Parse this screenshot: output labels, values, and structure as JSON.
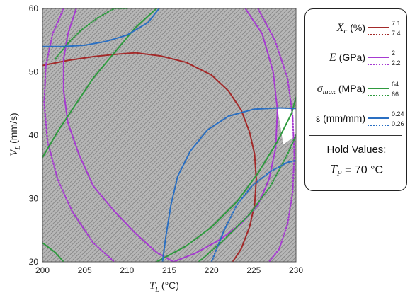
{
  "chart_data": {
    "type": "line",
    "xlabel_symbol": "T",
    "xlabel_sub": "L",
    "xlabel_unit": "(°C)",
    "ylabel_symbol": "V",
    "ylabel_sub": "L",
    "ylabel_unit": "(mm/s)",
    "xlim": [
      200,
      230
    ],
    "ylim": [
      20,
      60
    ],
    "xticks": [
      "200",
      "205",
      "210",
      "215",
      "220",
      "225",
      "230"
    ],
    "yticks": [
      "20",
      "30",
      "40",
      "50",
      "60"
    ],
    "grid": false,
    "background": "hatched gray feasible-region overlay with a small white unhatched pocket near x=228-230, y=40-44",
    "colors": {
      "crystallinity": "#a32a2a",
      "modulus": "#a63ad1",
      "strength": "#2e9a3e",
      "strain": "#2a6fc2",
      "hatch": "#8a8a8a"
    },
    "series": [
      {
        "name": "X_c (%) 7.1",
        "color": "#a32a2a",
        "style": "solid",
        "x": [
          200,
          203,
          206,
          209,
          211,
          214,
          217,
          220,
          222,
          223.5,
          224.5,
          225.1,
          225.3,
          225.1,
          224.5,
          223.5,
          222.5
        ],
        "y": [
          51,
          51.8,
          52.4,
          52.8,
          53,
          52.5,
          51.5,
          49.5,
          47,
          44,
          40.5,
          37,
          33,
          29,
          25.5,
          22,
          20
        ]
      },
      {
        "name": "E (GPa) 2",
        "color": "#a63ad1",
        "style": "solid",
        "x": [
          204,
          203,
          202.5,
          202.5,
          203,
          204.3,
          206,
          208.5,
          211,
          213.5,
          215.5
        ],
        "y": [
          60,
          56,
          52,
          47,
          42,
          37,
          32,
          28,
          24.5,
          21.5,
          20
        ]
      },
      {
        "name": "E (GPa) 2",
        "color": "#a63ad1",
        "style": "solid",
        "x": [
          224,
          226,
          227.3,
          227.8,
          227.6,
          226.8,
          225.5,
          223.5,
          221,
          218,
          215.5
        ],
        "y": [
          60,
          56,
          50,
          44,
          38,
          33,
          29,
          26,
          23.5,
          21.3,
          20
        ]
      },
      {
        "name": "E (GPa) 2.2",
        "color": "#a63ad1",
        "style": "dotted",
        "x": [
          202.5,
          201.2,
          200.4,
          200.2,
          200.6,
          201.8,
          203.5,
          206,
          208.5
        ],
        "y": [
          60,
          56,
          51,
          45,
          39,
          33,
          28,
          23,
          20
        ]
      },
      {
        "name": "E (GPa) 2.2",
        "color": "#a63ad1",
        "style": "dotted",
        "x": [
          225.5,
          227.5,
          229,
          229.6,
          229.8,
          229.6,
          229,
          228,
          226.8
        ],
        "y": [
          60,
          55,
          49,
          43,
          37,
          31,
          26,
          22,
          20
        ]
      },
      {
        "name": "σmax (MPa) 64",
        "color": "#2e9a3e",
        "style": "solid",
        "x": [
          200,
          202,
          204,
          206,
          208.5,
          211,
          213.5
        ],
        "y": [
          36.5,
          41,
          45,
          49,
          53,
          57,
          60
        ]
      },
      {
        "name": "σmax (MPa) 64",
        "color": "#2e9a3e",
        "style": "solid",
        "x": [
          200,
          201.5,
          202.5
        ],
        "y": [
          23,
          21.5,
          20
        ]
      },
      {
        "name": "σmax (MPa) 64",
        "color": "#2e9a3e",
        "style": "solid",
        "x": [
          213.5,
          217,
          220,
          223,
          225.5,
          227.8,
          229.5,
          230
        ],
        "y": [
          20,
          22.5,
          25.5,
          29.5,
          34,
          39,
          43.5,
          46
        ]
      },
      {
        "name": "σmax (MPa) 66",
        "color": "#2e9a3e",
        "style": "dotted",
        "x": [
          201.5,
          203,
          204.5,
          206.5,
          208.5,
          210
        ],
        "y": [
          52,
          54.5,
          56.5,
          58.5,
          60,
          60
        ]
      },
      {
        "name": "σmax (MPa) 66",
        "color": "#2e9a3e",
        "style": "dotted",
        "x": [
          218.5,
          221.5,
          224.5,
          227,
          229,
          230
        ],
        "y": [
          20,
          23.5,
          27.5,
          32,
          37,
          40
        ]
      },
      {
        "name": "ε (mm/mm) 0.24",
        "color": "#2a6fc2",
        "style": "solid",
        "x": [
          200,
          202.5,
          205,
          207.5,
          210,
          212.5,
          213.8
        ],
        "y": [
          54,
          54,
          54.2,
          54.8,
          55.8,
          57.8,
          60
        ]
      },
      {
        "name": "ε (mm/mm) 0.24",
        "color": "#2a6fc2",
        "style": "solid",
        "x": [
          214.2,
          214.6,
          215.2,
          216,
          217.5,
          219.5,
          222,
          225,
          228,
          230
        ],
        "y": [
          20,
          24,
          29,
          33.5,
          37.5,
          40.8,
          43,
          44.1,
          44.3,
          44.2
        ]
      },
      {
        "name": "ε (mm/mm) 0.26",
        "color": "#2a6fc2",
        "style": "dotted",
        "x": [
          220,
          221.5,
          223,
          224.8,
          227,
          229,
          230
        ],
        "y": [
          20,
          25,
          29,
          32,
          34.3,
          35.7,
          36
        ]
      }
    ]
  },
  "legend": {
    "items": [
      {
        "label_symbol": "X",
        "label_sub": "c",
        "label_unit": " (%)",
        "solid_value": "7.1",
        "dotted_value": "7.4",
        "color": "#a32a2a"
      },
      {
        "label_symbol": "E",
        "label_sub": "",
        "label_unit": " (GPa)",
        "solid_value": "2",
        "dotted_value": "2.2",
        "color": "#a63ad1"
      },
      {
        "label_symbol": "σ",
        "label_sub": "max",
        "label_unit": " (MPa)",
        "solid_value": "64",
        "dotted_value": "66",
        "color": "#2e9a3e"
      },
      {
        "label_symbol": "",
        "label_sub": "",
        "label_unit": "ε (mm/mm)",
        "solid_value": "0.24",
        "dotted_value": "0.26",
        "color": "#2a6fc2"
      }
    ],
    "hold_title": "Hold Values:",
    "hold_symbol": "T",
    "hold_sub": "P",
    "hold_value": " = 70 °C"
  }
}
